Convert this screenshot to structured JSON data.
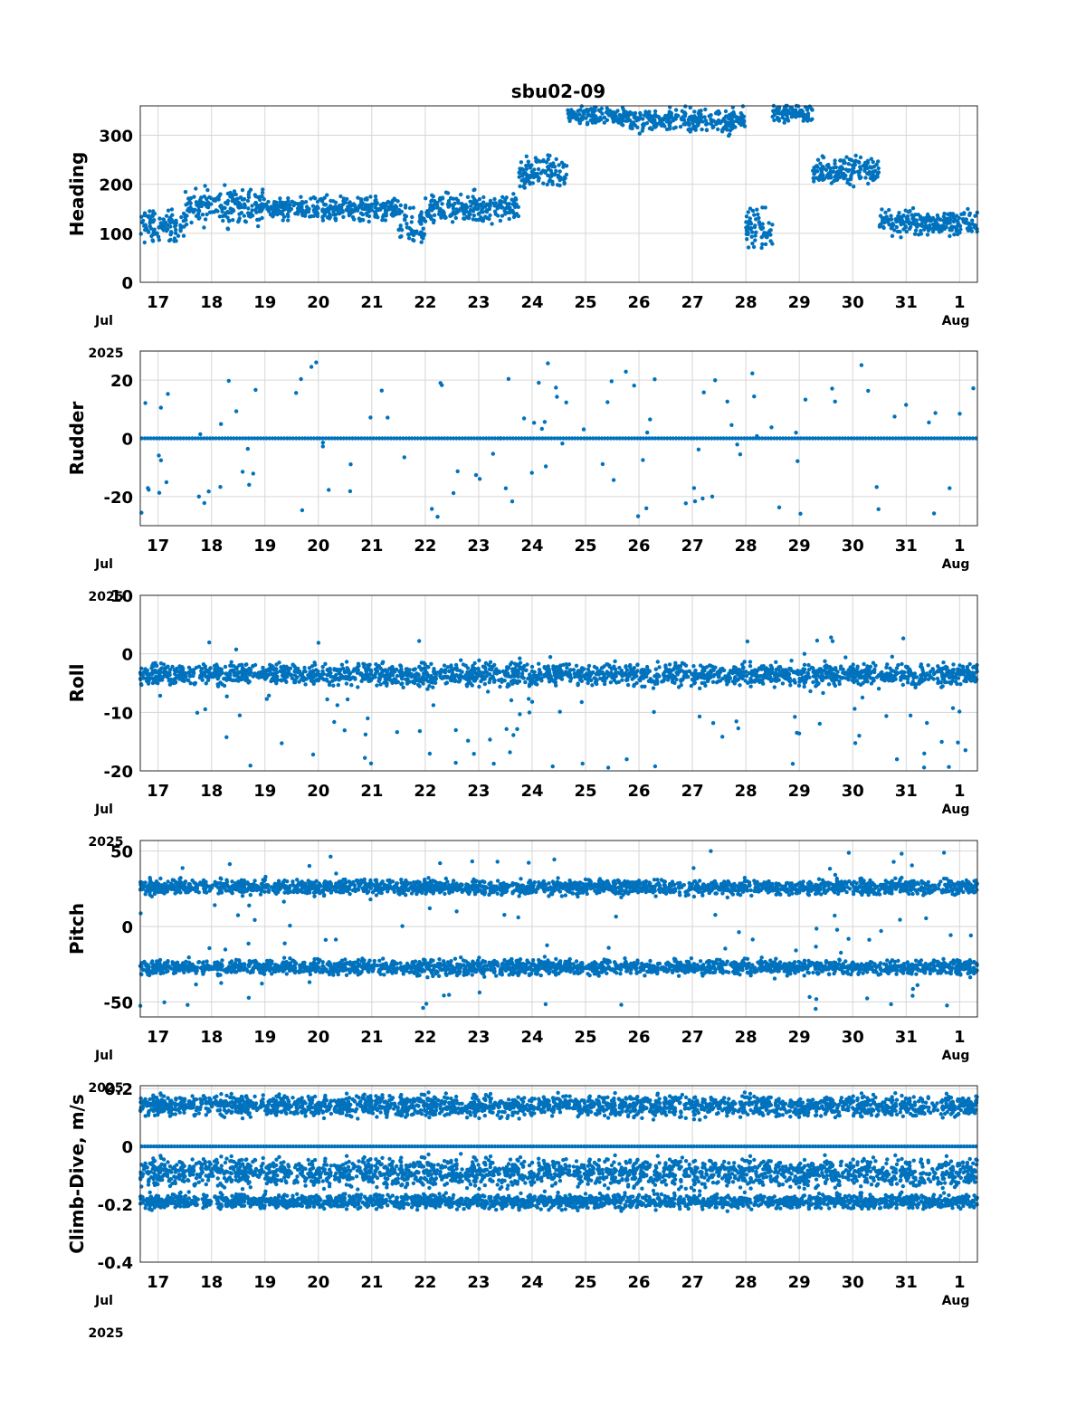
{
  "figure_title": "sbu02-09",
  "accent_color": "#0072BD",
  "chart_data": [
    {
      "type": "scatter",
      "ylabel": "Heading",
      "ylim": [
        0,
        360
      ],
      "yticks": [
        0,
        100,
        200,
        300
      ],
      "xlim": [
        "2025-07-16T16:00",
        "2025-08-01T08:00"
      ],
      "xtick_labels": [
        "17",
        "18",
        "19",
        "20",
        "21",
        "22",
        "23",
        "24",
        "25",
        "26",
        "27",
        "28",
        "29",
        "30",
        "31",
        "1"
      ],
      "x_month_labels": [
        "Jul",
        "Aug"
      ],
      "x_year_label": "2025",
      "grid": true,
      "bands": [
        {
          "from": "2025-07-16T16:00",
          "to": "2025-07-17T12:00",
          "center": 115,
          "spread": 25
        },
        {
          "from": "2025-07-17T12:00",
          "to": "2025-07-19T00:00",
          "center": 155,
          "spread": 30
        },
        {
          "from": "2025-07-19T00:00",
          "to": "2025-07-21T12:00",
          "center": 150,
          "spread": 18
        },
        {
          "from": "2025-07-21T12:00",
          "to": "2025-07-22T00:00",
          "center": 110,
          "spread": 35
        },
        {
          "from": "2025-07-22T00:00",
          "to": "2025-07-23T18:00",
          "center": 150,
          "spread": 25
        },
        {
          "from": "2025-07-23T18:00",
          "to": "2025-07-24T16:00",
          "center": 225,
          "spread": 25
        },
        {
          "from": "2025-07-24T16:00",
          "to": "2025-07-25T20:00",
          "center": 340,
          "spread": 15
        },
        {
          "from": "2025-07-25T20:00",
          "to": "2025-07-28T00:00",
          "center": 330,
          "spread": 20
        },
        {
          "from": "2025-07-28T00:00",
          "to": "2025-07-28T12:00",
          "center": 110,
          "spread": 30
        },
        {
          "from": "2025-07-28T12:00",
          "to": "2025-07-29T06:00",
          "center": 345,
          "spread": 15
        },
        {
          "from": "2025-07-29T06:00",
          "to": "2025-07-30T12:00",
          "center": 230,
          "spread": 22
        },
        {
          "from": "2025-07-30T12:00",
          "to": "2025-08-01T08:00",
          "center": 120,
          "spread": 20
        }
      ]
    },
    {
      "type": "scatter",
      "ylabel": "Rudder",
      "ylim": [
        -30,
        30
      ],
      "yticks": [
        -20,
        0,
        20
      ],
      "xlim": [
        "2025-07-16T16:00",
        "2025-08-01T08:00"
      ],
      "xtick_labels": [
        "17",
        "18",
        "19",
        "20",
        "21",
        "22",
        "23",
        "24",
        "25",
        "26",
        "27",
        "28",
        "29",
        "30",
        "31",
        "1"
      ],
      "x_month_labels": [
        "Jul",
        "Aug"
      ],
      "x_year_label": "2025",
      "grid": true,
      "bands": [
        {
          "from": "2025-07-16T16:00",
          "to": "2025-08-01T08:00",
          "center": 0,
          "spread": 0
        }
      ],
      "outlier_range": [
        -27,
        27
      ]
    },
    {
      "type": "scatter",
      "ylabel": "Roll",
      "ylim": [
        -20,
        10
      ],
      "yticks": [
        -20,
        -10,
        0,
        10
      ],
      "xlim": [
        "2025-07-16T16:00",
        "2025-08-01T08:00"
      ],
      "xtick_labels": [
        "17",
        "18",
        "19",
        "20",
        "21",
        "22",
        "23",
        "24",
        "25",
        "26",
        "27",
        "28",
        "29",
        "30",
        "31",
        "1"
      ],
      "x_month_labels": [
        "Jul",
        "Aug"
      ],
      "x_year_label": "2025",
      "grid": true,
      "bands": [
        {
          "from": "2025-07-16T16:00",
          "to": "2025-08-01T08:00",
          "center": -3.5,
          "spread": 1.5
        }
      ],
      "outlier_range": [
        -20,
        3
      ]
    },
    {
      "type": "scatter",
      "ylabel": "Pitch",
      "ylim": [
        -60,
        57
      ],
      "yticks": [
        -50,
        0,
        50
      ],
      "xlim": [
        "2025-07-16T16:00",
        "2025-08-01T08:00"
      ],
      "xtick_labels": [
        "17",
        "18",
        "19",
        "20",
        "21",
        "22",
        "23",
        "24",
        "25",
        "26",
        "27",
        "28",
        "29",
        "30",
        "31",
        "1"
      ],
      "x_month_labels": [
        "Jul",
        "Aug"
      ],
      "x_year_label": "2025",
      "grid": true,
      "bands": [
        {
          "from": "2025-07-16T16:00",
          "to": "2025-08-01T08:00",
          "center": 26,
          "spread": 4
        },
        {
          "from": "2025-07-16T16:00",
          "to": "2025-08-01T08:00",
          "center": -27,
          "spread": 4
        }
      ],
      "outlier_range": [
        -55,
        50
      ]
    },
    {
      "type": "scatter",
      "ylabel": "Climb-Dive, m/s",
      "ylim": [
        -0.4,
        0.21
      ],
      "yticks": [
        -0.4,
        -0.2,
        0,
        0.2
      ],
      "xlim": [
        "2025-07-16T16:00",
        "2025-08-01T08:00"
      ],
      "xtick_labels": [
        "17",
        "18",
        "19",
        "20",
        "21",
        "22",
        "23",
        "24",
        "25",
        "26",
        "27",
        "28",
        "29",
        "30",
        "31",
        "1"
      ],
      "x_month_labels": [
        "Jul",
        "Aug"
      ],
      "x_year_label": "2025",
      "grid": true,
      "bands": [
        {
          "from": "2025-07-16T16:00",
          "to": "2025-08-01T08:00",
          "center": 0.14,
          "spread": 0.03
        },
        {
          "from": "2025-07-16T16:00",
          "to": "2025-08-01T08:00",
          "center": 0,
          "spread": 0
        },
        {
          "from": "2025-07-16T16:00",
          "to": "2025-08-01T08:00",
          "center": -0.09,
          "spread": 0.04
        },
        {
          "from": "2025-07-16T16:00",
          "to": "2025-08-01T08:00",
          "center": -0.19,
          "spread": 0.02
        }
      ]
    }
  ]
}
